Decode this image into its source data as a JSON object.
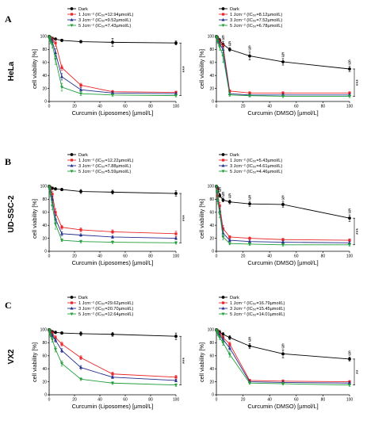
{
  "figure": {
    "panels": [
      {
        "letter": "A",
        "row_label": "HeLa"
      },
      {
        "letter": "B",
        "row_label": "UD-SSC-2"
      },
      {
        "letter": "C",
        "row_label": "VX2"
      }
    ]
  },
  "colors": {
    "dark": "#000000",
    "j1": "#e8262a",
    "j3": "#232c8c",
    "j5": "#1f9e3a"
  },
  "chart_data": [
    {
      "id": "hela-liposomes",
      "type": "line",
      "xlabel": "Curcumin (Liposomes) [µmol/L]",
      "ylabel": "cell viability [%]",
      "xlim": [
        0,
        100
      ],
      "ylim": [
        0,
        100
      ],
      "x_ticks": [
        0,
        20,
        40,
        60,
        80,
        100
      ],
      "y_ticks": [
        0,
        20,
        40,
        60,
        80,
        100
      ],
      "x": [
        0,
        0.5,
        1,
        2.5,
        5,
        10,
        25,
        50,
        100
      ],
      "series": [
        {
          "name": "Dark",
          "color": "#000000",
          "values": [
            100,
            99,
            98,
            97,
            96,
            94,
            92,
            91,
            90
          ],
          "errors": [
            2,
            2,
            2,
            2,
            2,
            2,
            2,
            6,
            3
          ]
        },
        {
          "name": "1 Jcm⁻² (IC₅₀=12.94µmol/L)",
          "color": "#e8262a",
          "values": [
            100,
            99,
            97,
            95,
            90,
            52,
            25,
            15,
            14
          ],
          "errors": [
            1,
            2,
            3,
            3,
            5,
            4,
            3,
            2,
            2
          ]
        },
        {
          "name": "3 Jcm⁻² (IC₅₀=9.52µmol/L)",
          "color": "#232c8c",
          "values": [
            100,
            98,
            96,
            92,
            75,
            38,
            18,
            13,
            12
          ],
          "errors": [
            1,
            2,
            3,
            4,
            6,
            5,
            3,
            2,
            2
          ]
        },
        {
          "name": "5 Jcm⁻² (IC₅₀=7.43µmol/L)",
          "color": "#1f9e3a",
          "values": [
            100,
            97,
            93,
            87,
            65,
            22,
            12,
            10,
            9
          ],
          "errors": [
            1,
            3,
            4,
            5,
            8,
            6,
            3,
            2,
            2
          ]
        }
      ],
      "legend": "top-center",
      "annotations": [
        {
          "text": "***",
          "x": 100
        }
      ]
    },
    {
      "id": "hela-dmso",
      "type": "line",
      "xlabel": "Curcumin (DMSO) [µmol/L]",
      "ylabel": "cell viability [%]",
      "xlim": [
        0,
        100
      ],
      "ylim": [
        0,
        100
      ],
      "x_ticks": [
        0,
        20,
        40,
        60,
        80,
        100
      ],
      "y_ticks": [
        0,
        20,
        40,
        60,
        80,
        100
      ],
      "x": [
        0,
        0.5,
        1,
        2.5,
        5,
        10,
        25,
        50,
        100
      ],
      "series": [
        {
          "name": "Dark",
          "color": "#000000",
          "values": [
            100,
            99,
            97,
            94,
            88,
            80,
            70,
            61,
            50
          ],
          "errors": [
            2,
            2,
            3,
            3,
            4,
            3,
            6,
            5,
            4
          ]
        },
        {
          "name": "1 Jcm⁻² (IC₅₀=8.12µmol/L)",
          "color": "#e8262a",
          "values": [
            100,
            99,
            96,
            91,
            85,
            16,
            13,
            13,
            13
          ],
          "errors": [
            1,
            2,
            3,
            4,
            4,
            2,
            2,
            2,
            2
          ]
        },
        {
          "name": "3 Jcm⁻² (IC₅₀=7.52µmol/L)",
          "color": "#232c8c",
          "values": [
            100,
            98,
            94,
            88,
            80,
            12,
            10,
            10,
            10
          ],
          "errors": [
            1,
            2,
            3,
            4,
            5,
            2,
            2,
            2,
            2
          ]
        },
        {
          "name": "5 Jcm⁻² (IC₅₀=6.78µmol/L)",
          "color": "#1f9e3a",
          "values": [
            100,
            97,
            92,
            84,
            70,
            10,
            9,
            8,
            8
          ],
          "errors": [
            1,
            2,
            3,
            5,
            10,
            2,
            2,
            2,
            2
          ]
        }
      ],
      "legend": "top-center",
      "annotations": [
        {
          "text": "§",
          "x": 5
        },
        {
          "text": "§",
          "x": 10
        },
        {
          "text": "§",
          "x": 25
        },
        {
          "text": "§",
          "x": 50
        },
        {
          "text": "§",
          "x": 100
        },
        {
          "text": "***",
          "x": 100
        }
      ]
    },
    {
      "id": "udssc2-liposomes",
      "type": "line",
      "xlabel": "Curcumin (Liposomes) [µmol/L]",
      "ylabel": "cell viability [%]",
      "xlim": [
        0,
        100
      ],
      "ylim": [
        0,
        100
      ],
      "x_ticks": [
        0,
        20,
        40,
        60,
        80,
        100
      ],
      "y_ticks": [
        0,
        20,
        40,
        60,
        80,
        100
      ],
      "x": [
        0,
        0.5,
        1,
        2.5,
        5,
        10,
        25,
        50,
        100
      ],
      "series": [
        {
          "name": "Dark",
          "color": "#000000",
          "values": [
            100,
            99,
            98,
            97,
            96,
            95,
            92,
            91,
            89
          ],
          "errors": [
            2,
            2,
            2,
            2,
            2,
            2,
            3,
            3,
            4
          ]
        },
        {
          "name": "1 Jcm⁻² (IC₅₀=12.22µmol/L)",
          "color": "#e8262a",
          "values": [
            100,
            98,
            95,
            88,
            60,
            37,
            33,
            30,
            27
          ],
          "errors": [
            1,
            2,
            3,
            4,
            5,
            3,
            3,
            3,
            4
          ]
        },
        {
          "name": "3 Jcm⁻² (IC₅₀=7.88µmol/L)",
          "color": "#232c8c",
          "values": [
            100,
            97,
            92,
            80,
            50,
            27,
            25,
            22,
            20
          ],
          "errors": [
            1,
            2,
            3,
            5,
            6,
            3,
            2,
            2,
            2
          ]
        },
        {
          "name": "5 Jcm⁻² (IC₅₀=5.59µmol/L)",
          "color": "#1f9e3a",
          "values": [
            100,
            96,
            88,
            70,
            42,
            17,
            15,
            14,
            13
          ],
          "errors": [
            1,
            2,
            4,
            6,
            8,
            2,
            2,
            2,
            2
          ]
        }
      ],
      "legend": "top-center",
      "annotations": [
        {
          "text": "***",
          "x": 100
        }
      ]
    },
    {
      "id": "udssc2-dmso",
      "type": "line",
      "xlabel": "Curcumin (DMSO) [µmol/L]",
      "ylabel": "cell viability [%]",
      "xlim": [
        0,
        100
      ],
      "ylim": [
        0,
        100
      ],
      "x_ticks": [
        0,
        20,
        40,
        60,
        80,
        100
      ],
      "y_ticks": [
        0,
        20,
        40,
        60,
        80,
        100
      ],
      "x": [
        0,
        0.5,
        1,
        2.5,
        5,
        10,
        25,
        50,
        100
      ],
      "series": [
        {
          "name": "Dark",
          "color": "#000000",
          "values": [
            100,
            98,
            95,
            86,
            79,
            76,
            73,
            72,
            51
          ],
          "errors": [
            2,
            2,
            4,
            3,
            3,
            3,
            4,
            4,
            5
          ]
        },
        {
          "name": "1 Jcm⁻² (IC₅₀=5.43µmol/L)",
          "color": "#e8262a",
          "values": [
            100,
            95,
            85,
            70,
            35,
            22,
            20,
            18,
            17
          ],
          "errors": [
            1,
            3,
            4,
            5,
            5,
            2,
            2,
            2,
            2
          ]
        },
        {
          "name": "3 Jcm⁻² (IC₅₀=4.61µmol/L)",
          "color": "#232c8c",
          "values": [
            100,
            93,
            80,
            62,
            28,
            17,
            15,
            14,
            13
          ],
          "errors": [
            1,
            3,
            4,
            5,
            4,
            2,
            2,
            2,
            2
          ]
        },
        {
          "name": "5 Jcm⁻² (IC₅₀=4.46µmol/L)",
          "color": "#1f9e3a",
          "values": [
            100,
            92,
            78,
            58,
            22,
            12,
            11,
            10,
            10
          ],
          "errors": [
            1,
            3,
            5,
            6,
            4,
            2,
            2,
            2,
            2
          ]
        }
      ],
      "legend": "top-center",
      "annotations": [
        {
          "text": "§",
          "x": 2.5
        },
        {
          "text": "§",
          "x": 5
        },
        {
          "text": "§",
          "x": 10
        },
        {
          "text": "§",
          "x": 25
        },
        {
          "text": "§",
          "x": 50
        },
        {
          "text": "§",
          "x": 100
        },
        {
          "text": "***",
          "x": 100
        }
      ]
    },
    {
      "id": "vx2-liposomes",
      "type": "line",
      "xlabel": "Curcumin (Liposomes) [µmol/L]",
      "ylabel": "cell viability [%]",
      "xlim": [
        0,
        100
      ],
      "ylim": [
        0,
        100
      ],
      "x_ticks": [
        0,
        20,
        40,
        60,
        80,
        100
      ],
      "y_ticks": [
        0,
        20,
        40,
        60,
        80,
        100
      ],
      "x": [
        0,
        0.5,
        1,
        2.5,
        5,
        10,
        25,
        50,
        100
      ],
      "series": [
        {
          "name": "Dark",
          "color": "#000000",
          "values": [
            100,
            99,
            98,
            97,
            96,
            95,
            94,
            93,
            90
          ],
          "errors": [
            2,
            2,
            2,
            2,
            2,
            2,
            3,
            3,
            5
          ]
        },
        {
          "name": "1 Jcm⁻² (IC₅₀=29.62µmol/L)",
          "color": "#e8262a",
          "values": [
            100,
            99,
            97,
            94,
            88,
            78,
            57,
            32,
            27
          ],
          "errors": [
            1,
            2,
            3,
            3,
            3,
            3,
            3,
            3,
            3
          ]
        },
        {
          "name": "3 Jcm⁻² (IC₅₀=20.70µmol/L)",
          "color": "#232c8c",
          "values": [
            100,
            98,
            95,
            91,
            84,
            68,
            42,
            27,
            22
          ],
          "errors": [
            1,
            2,
            3,
            3,
            3,
            3,
            3,
            2,
            2
          ]
        },
        {
          "name": "5 Jcm⁻² (IC₅₀=12.64µmol/L)",
          "color": "#1f9e3a",
          "values": [
            100,
            97,
            92,
            85,
            70,
            48,
            24,
            18,
            15
          ],
          "errors": [
            1,
            2,
            3,
            4,
            4,
            4,
            2,
            2,
            2
          ]
        }
      ],
      "legend": "top-center",
      "annotations": [
        {
          "text": "***",
          "x": 100
        }
      ]
    },
    {
      "id": "vx2-dmso",
      "type": "line",
      "xlabel": "Curcumin (DMSO) [µmol/L]",
      "ylabel": "cell viability [%]",
      "xlim": [
        0,
        100
      ],
      "ylim": [
        0,
        100
      ],
      "x_ticks": [
        0,
        20,
        40,
        60,
        80,
        100
      ],
      "y_ticks": [
        0,
        20,
        40,
        60,
        80,
        100
      ],
      "x": [
        0,
        0.5,
        1,
        2.5,
        5,
        10,
        25,
        50,
        100
      ],
      "series": [
        {
          "name": "Dark",
          "color": "#000000",
          "values": [
            100,
            99,
            98,
            96,
            93,
            88,
            75,
            63,
            55
          ],
          "errors": [
            2,
            2,
            2,
            3,
            3,
            3,
            4,
            6,
            3
          ]
        },
        {
          "name": "1 Jcm⁻² (IC₅₀=16.79µmol/L)",
          "color": "#e8262a",
          "values": [
            100,
            99,
            97,
            93,
            88,
            78,
            22,
            21,
            20
          ],
          "errors": [
            1,
            2,
            2,
            3,
            3,
            3,
            2,
            2,
            2
          ]
        },
        {
          "name": "3 Jcm⁻² (IC₅₀=15.45µmol/L)",
          "color": "#232c8c",
          "values": [
            100,
            98,
            96,
            91,
            85,
            72,
            20,
            19,
            18
          ],
          "errors": [
            1,
            2,
            2,
            3,
            3,
            3,
            2,
            2,
            2
          ]
        },
        {
          "name": "5 Jcm⁻² (IC₅₀=14.01µmol/L)",
          "color": "#1f9e3a",
          "values": [
            100,
            97,
            94,
            88,
            80,
            62,
            18,
            17,
            15
          ],
          "errors": [
            1,
            2,
            3,
            3,
            4,
            4,
            2,
            2,
            2
          ]
        }
      ],
      "legend": "top-center",
      "annotations": [
        {
          "text": "§",
          "x": 25
        },
        {
          "text": "§",
          "x": 50
        },
        {
          "text": "§",
          "x": 100
        },
        {
          "text": "**",
          "x": 100
        }
      ]
    }
  ]
}
